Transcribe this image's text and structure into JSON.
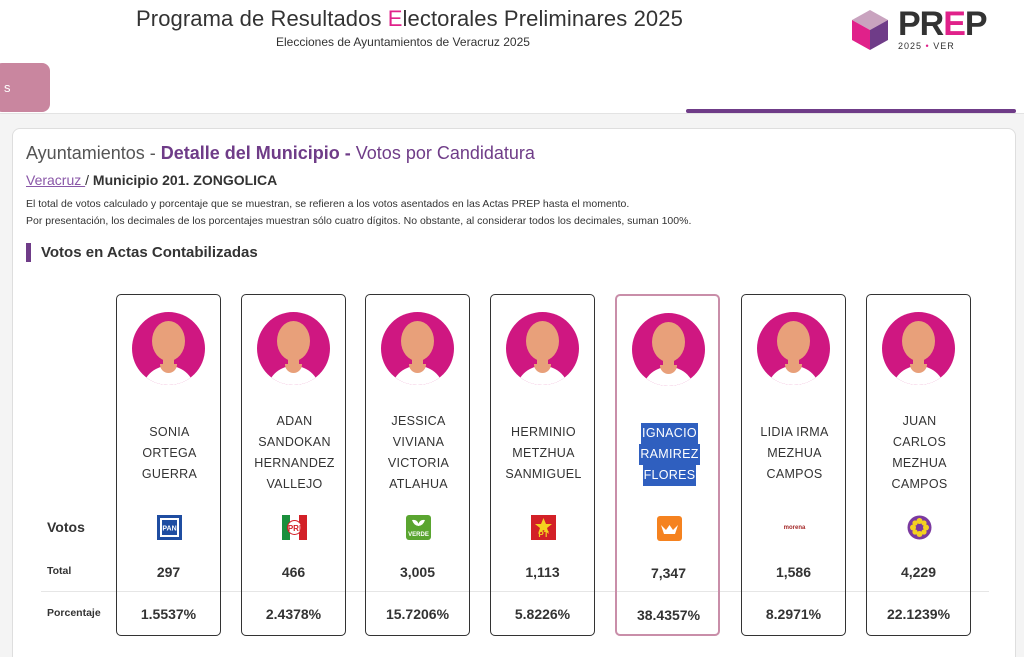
{
  "header": {
    "title_pre": "Programa de Resultados ",
    "title_hl": "E",
    "title_post": "lectorales Preliminares 2025",
    "subtitle": "Elecciones de Ayuntamientos de Veracruz 2025",
    "logo_p": "PR",
    "logo_e": "E",
    "logo_last": "P",
    "logo_year": "2025",
    "logo_dot": "•",
    "logo_state": "VER"
  },
  "nav": {
    "tab_label": "s"
  },
  "page": {
    "title_a": "Ayuntamientos - ",
    "title_b": "Detalle del Municipio - ",
    "title_c": "Votos por Candidatura",
    "crumb_link": "Veracruz ",
    "crumb_sep": "/ ",
    "crumb_current": "Municipio 201. ZONGOLICA",
    "note1": "El total de votos calculado y porcentaje que se muestran, se refieren a los votos asentados en las Actas PREP hasta el momento.",
    "note2": "Por presentación, los decimales de los porcentajes muestran sólo cuatro dígitos. No obstante, al considerar todos los decimales, suman 100%.",
    "section": "Votos en Actas Contabilizadas"
  },
  "table": {
    "votos_label": "Votos",
    "total_label": "Total",
    "porcentaje_label": "Porcentaje"
  },
  "colors": {
    "accent_purple": "#6f3c88",
    "accent_pink": "#e0218a",
    "avatar_bg": "#cf1781"
  },
  "candidates": [
    {
      "name": [
        "SONIA",
        "ORTEGA",
        "GUERRA"
      ],
      "party": "PAN",
      "party_icon": "pan-logo-icon",
      "total": "297",
      "pct": "1.5537%"
    },
    {
      "name": [
        "ADAN",
        "SANDOKAN",
        "HERNANDEZ",
        "VALLEJO"
      ],
      "party": "PRI",
      "party_icon": "pri-logo-icon",
      "total": "466",
      "pct": "2.4378%"
    },
    {
      "name": [
        "JESSICA",
        "VIVIANA",
        "VICTORIA",
        "ATLAHUA"
      ],
      "party": "VERDE",
      "party_icon": "verde-logo-icon",
      "total": "3,005",
      "pct": "15.7206%"
    },
    {
      "name": [
        "HERMINIO",
        "METZHUA",
        "SANMIGUEL"
      ],
      "party": "PT",
      "party_icon": "pt-logo-icon",
      "total": "1,113",
      "pct": "5.8226%"
    },
    {
      "name": [
        "IGNACIO",
        "RAMIREZ",
        "FLORES"
      ],
      "party": "MC",
      "party_icon": "mc-logo-icon",
      "total": "7,347",
      "pct": "38.4357%",
      "highlighted": true
    },
    {
      "name": [
        "LIDIA IRMA",
        "MEZHUA",
        "CAMPOS"
      ],
      "party": "morena",
      "party_icon": "morena-logo-icon",
      "total": "1,586",
      "pct": "8.2971%"
    },
    {
      "name": [
        "JUAN",
        "CARLOS",
        "MEZHUA",
        "CAMPOS"
      ],
      "party": "PVEM-flower",
      "party_icon": "flower-logo-icon",
      "total": "4,229",
      "pct": "22.1239%"
    }
  ]
}
